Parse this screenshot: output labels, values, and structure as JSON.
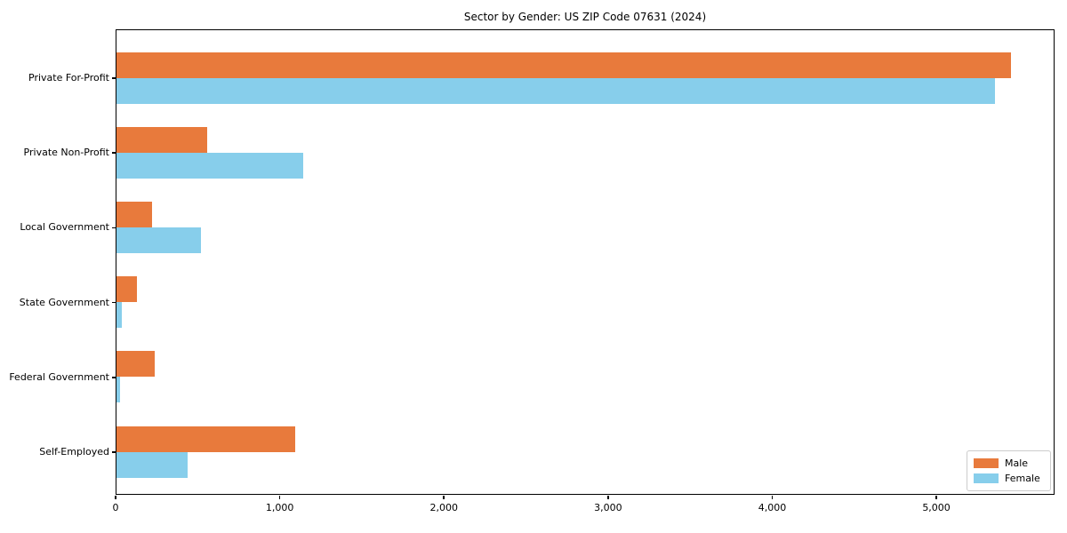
{
  "chart_data": {
    "type": "bar",
    "orientation": "horizontal",
    "title": "Sector by Gender: US ZIP Code 07631 (2024)",
    "categories": [
      "Private For-Profit",
      "Private Non-Profit",
      "Local Government",
      "State Government",
      "Federal Government",
      "Self-Employed"
    ],
    "series": [
      {
        "name": "Male",
        "color": "#e87a3c",
        "values": [
          5447,
          551,
          218,
          126,
          231,
          1088
        ]
      },
      {
        "name": "Female",
        "color": "#87ceeb",
        "values": [
          5354,
          1137,
          516,
          32,
          23,
          435
        ]
      }
    ],
    "xlabel": "",
    "ylabel": "",
    "xlim": [
      0,
      5720
    ],
    "x_ticks": [
      0,
      1000,
      2000,
      3000,
      4000,
      5000
    ],
    "x_tick_labels": [
      "0",
      "1,000",
      "2,000",
      "3,000",
      "4,000",
      "5,000"
    ],
    "grid": false,
    "legend_position": "lower right",
    "colors": {
      "male": "#e87a3c",
      "female": "#87ceeb",
      "spine": "#000000",
      "background": "#ffffff"
    }
  }
}
